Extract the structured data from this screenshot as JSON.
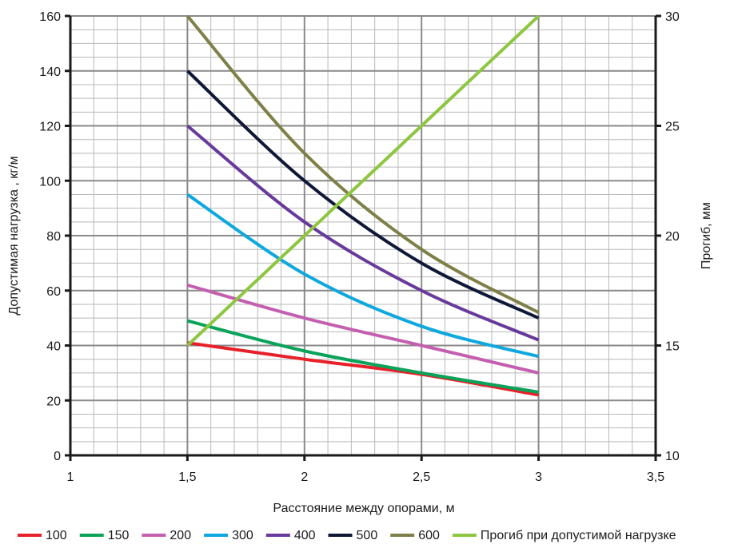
{
  "chart_data": {
    "type": "line",
    "xlabel": "Расстояние между опорами, м",
    "ylabel": "Допустимая нагрузка , кг/м",
    "y2label": "Прогиб, мм",
    "xlim": [
      1,
      3.5
    ],
    "ylim": [
      0,
      160
    ],
    "y2lim": [
      10,
      30
    ],
    "x_ticks": [
      1,
      1.5,
      2,
      2.5,
      3,
      3.5
    ],
    "x_tick_labels": [
      "1",
      "1,5",
      "2",
      "2,5",
      "3",
      "3,5"
    ],
    "y_ticks": [
      0,
      20,
      40,
      60,
      80,
      100,
      120,
      140,
      160
    ],
    "y_tick_labels": [
      "0",
      "20",
      "40",
      "60",
      "80",
      "100",
      "120",
      "140",
      "160"
    ],
    "y2_ticks": [
      10,
      15,
      20,
      25,
      30
    ],
    "y2_tick_labels": [
      "10",
      "15",
      "20",
      "25",
      "30"
    ],
    "grid": true,
    "legend_position": "bottom",
    "series": [
      {
        "name": "100",
        "color": "#e8202a",
        "axis": "left",
        "x": [
          1.5,
          2,
          2.5,
          3
        ],
        "values": [
          41,
          35,
          29.5,
          22
        ]
      },
      {
        "name": "150",
        "color": "#0aa35a",
        "axis": "left",
        "x": [
          1.5,
          2,
          2.5,
          3
        ],
        "values": [
          49,
          38,
          30,
          23
        ]
      },
      {
        "name": "200",
        "color": "#c45fb0",
        "axis": "left",
        "x": [
          1.5,
          2,
          2.5,
          3
        ],
        "values": [
          62,
          50,
          40,
          30
        ]
      },
      {
        "name": "300",
        "color": "#0ea8df",
        "axis": "left",
        "x": [
          1.5,
          2,
          2.5,
          3
        ],
        "values": [
          95,
          66,
          47,
          36
        ]
      },
      {
        "name": "400",
        "color": "#673a9c",
        "axis": "left",
        "x": [
          1.5,
          2,
          2.5,
          3
        ],
        "values": [
          120,
          85,
          60,
          42
        ]
      },
      {
        "name": "500",
        "color": "#101838",
        "axis": "left",
        "x": [
          1.5,
          2,
          2.5,
          3
        ],
        "values": [
          140,
          100,
          70,
          50
        ]
      },
      {
        "name": "600",
        "color": "#7f8048",
        "axis": "left",
        "x": [
          1.5,
          2,
          2.5,
          3
        ],
        "values": [
          160,
          110,
          75,
          52
        ]
      },
      {
        "name": "Прогиб при допустимой нагрузке",
        "color": "#8dc63f",
        "axis": "right",
        "x": [
          1.5,
          3
        ],
        "values": [
          15,
          30
        ]
      }
    ]
  }
}
